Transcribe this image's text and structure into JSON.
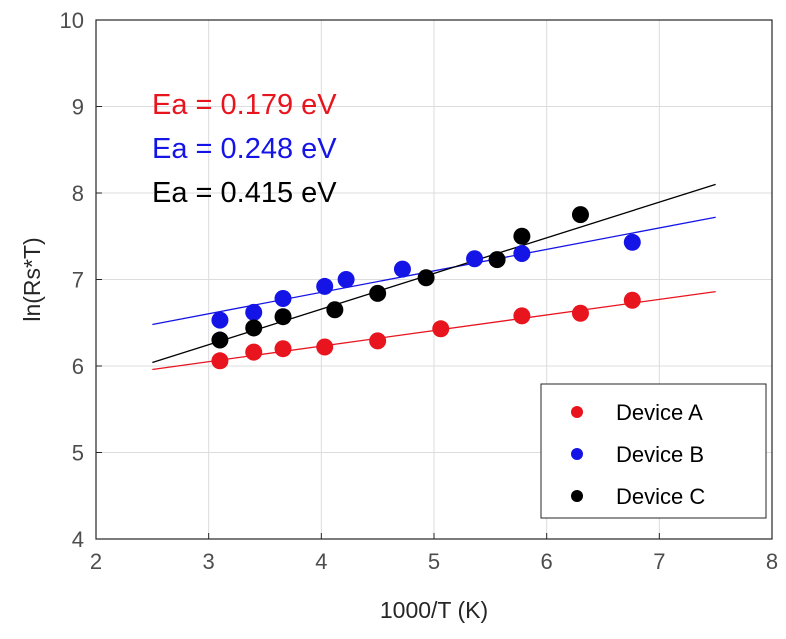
{
  "chart_data": {
    "type": "scatter",
    "xlabel": "1000/T (K)",
    "ylabel": "ln(Rs*T)",
    "xlim": [
      2,
      8
    ],
    "ylim": [
      4,
      10
    ],
    "xticks": [
      2,
      3,
      4,
      5,
      6,
      7,
      8
    ],
    "yticks": [
      4,
      5,
      6,
      7,
      8,
      9,
      10
    ],
    "grid": true,
    "legend_position": "bottom-right",
    "annotations": [
      {
        "text": "Ea = 0.179 eV",
        "color": "#e8141e"
      },
      {
        "text": "Ea = 0.248 eV",
        "color": "#1414e6"
      },
      {
        "text": "Ea = 0.415 eV",
        "color": "#000000"
      }
    ],
    "series": [
      {
        "name": "Device A",
        "color": "#e8141e",
        "points": [
          {
            "x": 3.1,
            "y": 6.06
          },
          {
            "x": 3.4,
            "y": 6.16
          },
          {
            "x": 3.66,
            "y": 6.2
          },
          {
            "x": 4.03,
            "y": 6.22
          },
          {
            "x": 4.5,
            "y": 6.29
          },
          {
            "x": 5.06,
            "y": 6.43
          },
          {
            "x": 5.78,
            "y": 6.58
          },
          {
            "x": 6.3,
            "y": 6.61
          },
          {
            "x": 6.76,
            "y": 6.76
          }
        ],
        "fit": {
          "x": [
            2.5,
            7.5
          ],
          "y": [
            5.96,
            6.86
          ]
        }
      },
      {
        "name": "Device B",
        "color": "#1414e6",
        "points": [
          {
            "x": 3.1,
            "y": 6.53
          },
          {
            "x": 3.4,
            "y": 6.62
          },
          {
            "x": 3.66,
            "y": 6.78
          },
          {
            "x": 4.03,
            "y": 6.92
          },
          {
            "x": 4.22,
            "y": 7.0
          },
          {
            "x": 4.72,
            "y": 7.12
          },
          {
            "x": 5.36,
            "y": 7.24
          },
          {
            "x": 5.78,
            "y": 7.3
          },
          {
            "x": 6.76,
            "y": 7.43
          }
        ],
        "fit": {
          "x": [
            2.5,
            7.5
          ],
          "y": [
            6.48,
            7.72
          ]
        }
      },
      {
        "name": "Device C",
        "color": "#000000",
        "points": [
          {
            "x": 3.1,
            "y": 6.3
          },
          {
            "x": 3.4,
            "y": 6.44
          },
          {
            "x": 3.66,
            "y": 6.57
          },
          {
            "x": 4.12,
            "y": 6.65
          },
          {
            "x": 4.5,
            "y": 6.84
          },
          {
            "x": 4.93,
            "y": 7.02
          },
          {
            "x": 5.56,
            "y": 7.23
          },
          {
            "x": 5.78,
            "y": 7.5
          },
          {
            "x": 6.3,
            "y": 7.75
          }
        ],
        "fit": {
          "x": [
            2.5,
            7.5
          ],
          "y": [
            6.04,
            8.1
          ]
        }
      }
    ]
  }
}
